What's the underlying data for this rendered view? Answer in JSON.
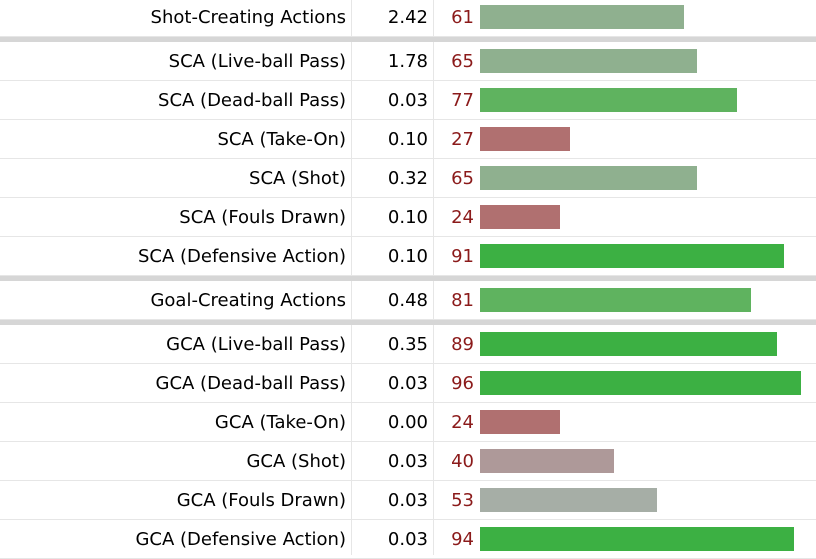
{
  "chart_data": {
    "type": "bar",
    "orientation": "horizontal",
    "xlim": [
      0,
      100
    ],
    "grid": false,
    "columns": [
      "label",
      "value",
      "percentile",
      "bar"
    ],
    "rows": [
      {
        "label": "Shot-Creating Actions",
        "value": "2.42",
        "percentile": 61,
        "color": "#8fb08f",
        "group_start": false
      },
      {
        "label": "SCA (Live-ball Pass)",
        "value": "1.78",
        "percentile": 65,
        "color": "#8fb08f",
        "group_start": true
      },
      {
        "label": "SCA (Dead-ball Pass)",
        "value": "0.03",
        "percentile": 77,
        "color": "#5fb35f",
        "group_start": false
      },
      {
        "label": "SCA (Take-On)",
        "value": "0.10",
        "percentile": 27,
        "color": "#b07070",
        "group_start": false
      },
      {
        "label": "SCA (Shot)",
        "value": "0.32",
        "percentile": 65,
        "color": "#8fb08f",
        "group_start": false
      },
      {
        "label": "SCA (Fouls Drawn)",
        "value": "0.10",
        "percentile": 24,
        "color": "#b07070",
        "group_start": false
      },
      {
        "label": "SCA (Defensive Action)",
        "value": "0.10",
        "percentile": 91,
        "color": "#3cb043",
        "group_start": false
      },
      {
        "label": "Goal-Creating Actions",
        "value": "0.48",
        "percentile": 81,
        "color": "#5fb35f",
        "group_start": true
      },
      {
        "label": "GCA (Live-ball Pass)",
        "value": "0.35",
        "percentile": 89,
        "color": "#3cb043",
        "group_start": true
      },
      {
        "label": "GCA (Dead-ball Pass)",
        "value": "0.03",
        "percentile": 96,
        "color": "#3cb043",
        "group_start": false
      },
      {
        "label": "GCA (Take-On)",
        "value": "0.00",
        "percentile": 24,
        "color": "#b07070",
        "group_start": false
      },
      {
        "label": "GCA (Shot)",
        "value": "0.03",
        "percentile": 40,
        "color": "#ae9999",
        "group_start": false
      },
      {
        "label": "GCA (Fouls Drawn)",
        "value": "0.03",
        "percentile": 53,
        "color": "#a6aea6",
        "group_start": false
      },
      {
        "label": "GCA (Defensive Action)",
        "value": "0.03",
        "percentile": 94,
        "color": "#3cb043",
        "group_start": false
      }
    ]
  }
}
